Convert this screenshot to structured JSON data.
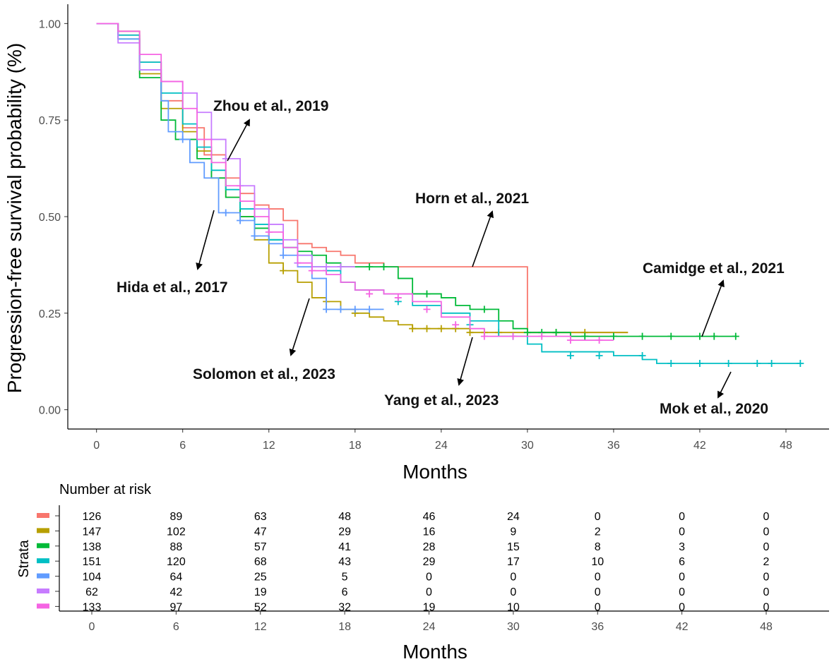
{
  "chart_data": {
    "type": "line",
    "subtype": "kaplan-meier",
    "ylabel": "Progression-free survival probability (%)",
    "xlabel": "Months",
    "xlim": [
      -2,
      51
    ],
    "ylim": [
      -0.05,
      1.05
    ],
    "x_ticks": [
      "0",
      "6",
      "12",
      "18",
      "24",
      "30",
      "36",
      "42",
      "48"
    ],
    "x_tick_values": [
      0,
      6,
      12,
      18,
      24,
      30,
      36,
      42,
      48
    ],
    "y_ticks": [
      "0.00",
      "0.25",
      "0.50",
      "0.75",
      "1.00"
    ],
    "y_tick_values": [
      0,
      0.25,
      0.5,
      0.75,
      1.0
    ],
    "series": [
      {
        "name": "Horn et al., 2021",
        "color": "#F8766D",
        "steps": [
          [
            0,
            1.0
          ],
          [
            1.5,
            0.97
          ],
          [
            3,
            0.9
          ],
          [
            4.5,
            0.8
          ],
          [
            6,
            0.73
          ],
          [
            7.5,
            0.66
          ],
          [
            9,
            0.6
          ],
          [
            10,
            0.56
          ],
          [
            11,
            0.53
          ],
          [
            12,
            0.52
          ],
          [
            13,
            0.49
          ],
          [
            14,
            0.43
          ],
          [
            15,
            0.42
          ],
          [
            16,
            0.41
          ],
          [
            17,
            0.4
          ],
          [
            18,
            0.38
          ],
          [
            20,
            0.37
          ],
          [
            24,
            0.37
          ],
          [
            30,
            0.37
          ],
          [
            30,
            0.2
          ],
          [
            34,
            0.2
          ],
          [
            37,
            0.2
          ]
        ],
        "censors": []
      },
      {
        "name": "Solomon et al., 2023",
        "color": "#B79F00",
        "steps": [
          [
            0,
            1.0
          ],
          [
            1.5,
            0.98
          ],
          [
            3,
            0.87
          ],
          [
            4.5,
            0.78
          ],
          [
            6,
            0.72
          ],
          [
            7,
            0.67
          ],
          [
            8,
            0.6
          ],
          [
            9,
            0.55
          ],
          [
            10,
            0.5
          ],
          [
            11,
            0.44
          ],
          [
            12,
            0.38
          ],
          [
            13,
            0.36
          ],
          [
            14,
            0.33
          ],
          [
            15,
            0.29
          ],
          [
            16,
            0.28
          ],
          [
            17,
            0.26
          ],
          [
            18,
            0.25
          ],
          [
            19,
            0.24
          ],
          [
            20,
            0.23
          ],
          [
            21,
            0.22
          ],
          [
            22,
            0.21
          ],
          [
            26,
            0.2
          ],
          [
            28,
            0.2
          ],
          [
            31,
            0.2
          ],
          [
            33,
            0.2
          ],
          [
            36,
            0.2
          ],
          [
            37,
            0.2
          ]
        ],
        "censors": [
          [
            13,
            0.36
          ],
          [
            16,
            0.28
          ],
          [
            18,
            0.25
          ],
          [
            22,
            0.21
          ],
          [
            23,
            0.21
          ],
          [
            24,
            0.21
          ],
          [
            25,
            0.21
          ],
          [
            26,
            0.2
          ],
          [
            27,
            0.2
          ],
          [
            28,
            0.2
          ],
          [
            32,
            0.2
          ],
          [
            34,
            0.2
          ]
        ]
      },
      {
        "name": "Camidge et al., 2021",
        "color": "#00BA38",
        "steps": [
          [
            0,
            1.0
          ],
          [
            1.5,
            0.96
          ],
          [
            3,
            0.86
          ],
          [
            4.5,
            0.75
          ],
          [
            5.5,
            0.7
          ],
          [
            7,
            0.65
          ],
          [
            8,
            0.6
          ],
          [
            9,
            0.55
          ],
          [
            10,
            0.5
          ],
          [
            11,
            0.47
          ],
          [
            12,
            0.44
          ],
          [
            13,
            0.42
          ],
          [
            14,
            0.41
          ],
          [
            15,
            0.4
          ],
          [
            16,
            0.38
          ],
          [
            17,
            0.37
          ],
          [
            20,
            0.37
          ],
          [
            21,
            0.34
          ],
          [
            22,
            0.3
          ],
          [
            24,
            0.29
          ],
          [
            25,
            0.27
          ],
          [
            26,
            0.26
          ],
          [
            28,
            0.23
          ],
          [
            29,
            0.21
          ],
          [
            30,
            0.2
          ],
          [
            33,
            0.19
          ],
          [
            44.5,
            0.19
          ]
        ],
        "censors": [
          [
            17,
            0.37
          ],
          [
            19,
            0.37
          ],
          [
            20,
            0.37
          ],
          [
            23,
            0.3
          ],
          [
            27,
            0.26
          ],
          [
            30,
            0.2
          ],
          [
            31,
            0.2
          ],
          [
            32,
            0.2
          ],
          [
            34,
            0.19
          ],
          [
            36,
            0.19
          ],
          [
            38,
            0.19
          ],
          [
            40,
            0.19
          ],
          [
            42,
            0.19
          ],
          [
            43,
            0.19
          ],
          [
            44.5,
            0.19
          ]
        ]
      },
      {
        "name": "Mok et al., 2020",
        "color": "#00BFC4",
        "steps": [
          [
            0,
            1.0
          ],
          [
            1.5,
            0.97
          ],
          [
            3,
            0.9
          ],
          [
            4.5,
            0.82
          ],
          [
            6,
            0.74
          ],
          [
            7,
            0.68
          ],
          [
            8,
            0.62
          ],
          [
            9,
            0.57
          ],
          [
            10,
            0.52
          ],
          [
            11,
            0.48
          ],
          [
            12,
            0.44
          ],
          [
            13,
            0.42
          ],
          [
            14,
            0.4
          ],
          [
            15,
            0.37
          ],
          [
            16,
            0.36
          ],
          [
            17,
            0.33
          ],
          [
            18,
            0.31
          ],
          [
            20,
            0.3
          ],
          [
            22,
            0.27
          ],
          [
            24,
            0.25
          ],
          [
            26,
            0.23
          ],
          [
            28,
            0.19
          ],
          [
            30,
            0.17
          ],
          [
            31,
            0.15
          ],
          [
            36,
            0.14
          ],
          [
            38,
            0.13
          ],
          [
            39,
            0.12
          ],
          [
            49,
            0.12
          ]
        ],
        "censors": [
          [
            16,
            0.36
          ],
          [
            21,
            0.28
          ],
          [
            26,
            0.22
          ],
          [
            29,
            0.19
          ],
          [
            33,
            0.14
          ],
          [
            35,
            0.14
          ],
          [
            38,
            0.14
          ],
          [
            40,
            0.12
          ],
          [
            42,
            0.12
          ],
          [
            44,
            0.12
          ],
          [
            46,
            0.12
          ],
          [
            47,
            0.12
          ],
          [
            49,
            0.12
          ]
        ]
      },
      {
        "name": "Hida et al., 2017",
        "color": "#619CFF",
        "steps": [
          [
            0,
            1.0
          ],
          [
            1.5,
            0.96
          ],
          [
            3,
            0.88
          ],
          [
            4.5,
            0.8
          ],
          [
            5,
            0.72
          ],
          [
            6,
            0.7
          ],
          [
            6.5,
            0.64
          ],
          [
            7.5,
            0.6
          ],
          [
            8.5,
            0.51
          ],
          [
            10,
            0.49
          ],
          [
            11,
            0.45
          ],
          [
            12,
            0.43
          ],
          [
            13,
            0.4
          ],
          [
            14,
            0.37
          ],
          [
            15,
            0.34
          ],
          [
            16,
            0.26
          ],
          [
            20,
            0.26
          ]
        ],
        "censors": [
          [
            6,
            0.7
          ],
          [
            9,
            0.51
          ],
          [
            10,
            0.49
          ],
          [
            11,
            0.45
          ],
          [
            13,
            0.4
          ],
          [
            16,
            0.26
          ],
          [
            17,
            0.26
          ],
          [
            18,
            0.26
          ],
          [
            19,
            0.26
          ]
        ]
      },
      {
        "name": "Zhou et al., 2019",
        "color": "#C77CFF",
        "steps": [
          [
            0,
            1.0
          ],
          [
            1.5,
            0.95
          ],
          [
            3,
            0.88
          ],
          [
            4.5,
            0.85
          ],
          [
            6,
            0.82
          ],
          [
            7,
            0.77
          ],
          [
            8,
            0.7
          ],
          [
            9,
            0.65
          ],
          [
            10,
            0.58
          ],
          [
            11,
            0.52
          ],
          [
            12,
            0.48
          ],
          [
            13,
            0.44
          ],
          [
            14,
            0.4
          ],
          [
            15,
            0.37
          ],
          [
            18,
            0.37
          ]
        ],
        "censors": [
          [
            9,
            0.65
          ],
          [
            10,
            0.58
          ],
          [
            14,
            0.38
          ],
          [
            16,
            0.37
          ],
          [
            17,
            0.37
          ]
        ]
      },
      {
        "name": "Yang et al., 2023",
        "color": "#F564E3",
        "steps": [
          [
            0,
            1.0
          ],
          [
            1.5,
            0.98
          ],
          [
            3,
            0.92
          ],
          [
            4.5,
            0.85
          ],
          [
            6,
            0.78
          ],
          [
            7,
            0.7
          ],
          [
            8,
            0.64
          ],
          [
            9,
            0.58
          ],
          [
            10,
            0.54
          ],
          [
            11,
            0.5
          ],
          [
            12,
            0.46
          ],
          [
            13,
            0.42
          ],
          [
            14,
            0.38
          ],
          [
            15,
            0.36
          ],
          [
            16,
            0.35
          ],
          [
            17,
            0.33
          ],
          [
            18,
            0.31
          ],
          [
            20,
            0.3
          ],
          [
            22,
            0.28
          ],
          [
            24,
            0.24
          ],
          [
            26,
            0.21
          ],
          [
            27,
            0.19
          ],
          [
            30,
            0.19
          ],
          [
            33,
            0.18
          ],
          [
            36,
            0.18
          ]
        ],
        "censors": [
          [
            12,
            0.46
          ],
          [
            15,
            0.36
          ],
          [
            19,
            0.3
          ],
          [
            21,
            0.29
          ],
          [
            23,
            0.26
          ],
          [
            25,
            0.22
          ],
          [
            27,
            0.19
          ],
          [
            29,
            0.19
          ],
          [
            31,
            0.19
          ],
          [
            33,
            0.18
          ],
          [
            35,
            0.18
          ]
        ]
      }
    ],
    "annotations": [
      {
        "text": "Zhou  et al., 2019",
        "series": "Zhou et al., 2019"
      },
      {
        "text": "Horn et al., 2021",
        "series": "Horn et al., 2021"
      },
      {
        "text": "Hida et al., 2017",
        "series": "Hida et al., 2017"
      },
      {
        "text": "Camidge et al., 2021",
        "series": "Camidge et al., 2021"
      },
      {
        "text": "Solomon et al., 2023",
        "series": "Solomon et al., 2023"
      },
      {
        "text": "Yang  et al., 2023",
        "series": "Yang et al., 2023"
      },
      {
        "text": "Mok  et al., 2020",
        "series": "Mok et al., 2020"
      }
    ],
    "risk_table": {
      "title": "Number at risk",
      "strata_label": "Strata",
      "xlabel": "Months",
      "rows": [
        {
          "color": "#F8766D",
          "values": [
            "126",
            "89",
            "63",
            "48",
            "46",
            "24",
            "0",
            "0",
            "0"
          ]
        },
        {
          "color": "#B79F00",
          "values": [
            "147",
            "102",
            "47",
            "29",
            "16",
            "9",
            "2",
            "0",
            "0"
          ]
        },
        {
          "color": "#00BA38",
          "values": [
            "138",
            "88",
            "57",
            "41",
            "28",
            "15",
            "8",
            "3",
            "0"
          ]
        },
        {
          "color": "#00BFC4",
          "values": [
            "151",
            "120",
            "68",
            "43",
            "29",
            "17",
            "10",
            "6",
            "2"
          ]
        },
        {
          "color": "#619CFF",
          "values": [
            "104",
            "64",
            "25",
            "5",
            "0",
            "0",
            "0",
            "0",
            "0"
          ]
        },
        {
          "color": "#C77CFF",
          "values": [
            "62",
            "42",
            "19",
            "6",
            "0",
            "0",
            "0",
            "0",
            "0"
          ]
        },
        {
          "color": "#F564E3",
          "values": [
            "133",
            "97",
            "52",
            "32",
            "19",
            "10",
            "0",
            "0",
            "0"
          ]
        }
      ]
    }
  }
}
